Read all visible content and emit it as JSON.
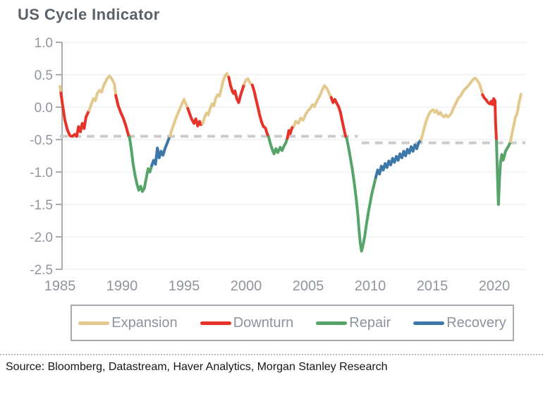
{
  "page": {
    "title": "US Cycle Indicator",
    "source_text": "Source: Bloomberg, Datastream, Haver Analytics, Morgan Stanley Research"
  },
  "colors": {
    "grid": "#E8E8E8",
    "axis": "#ABABAB",
    "tick_text": "#8F959D",
    "dashed_threshold": "#CBCBCB",
    "title_text": "#5B6169",
    "legend_text": "#8C939E",
    "legend_border": "#A6AAAF",
    "source_text": "#14161A"
  },
  "chart_data": {
    "type": "line",
    "title": "US Cycle Indicator",
    "xlabel": "",
    "ylabel": "",
    "xlim": [
      1984.8,
      2022.6
    ],
    "ylim": [
      -2.5,
      1.0
    ],
    "x_ticks": [
      1985,
      1990,
      1995,
      2000,
      2005,
      2010,
      2015,
      2020
    ],
    "y_ticks": [
      1.0,
      0.5,
      0.0,
      -0.5,
      -1.0,
      -1.5,
      -2.0,
      -2.5
    ],
    "grid": true,
    "legend_position": "bottom-box",
    "legend": [
      "Expansion",
      "Downturn",
      "Repair",
      "Recovery"
    ],
    "phases": {
      "Expansion": "#E4C98E",
      "Downturn": "#E73229",
      "Repair": "#57A46A",
      "Recovery": "#3C77A8"
    },
    "threshold_dashed": [
      {
        "y": -0.45,
        "x_start": 1985.0,
        "x_end": 2009.0
      },
      {
        "y": -0.55,
        "x_start": 2009.3,
        "x_end": 2022.5
      }
    ],
    "segments": [
      {
        "phase": "Expansion",
        "points": [
          [
            1985.0,
            0.32
          ],
          [
            1985.08,
            0.22
          ]
        ]
      },
      {
        "phase": "Downturn",
        "points": [
          [
            1985.08,
            0.22
          ],
          [
            1985.2,
            0.05
          ],
          [
            1985.4,
            -0.2
          ],
          [
            1985.6,
            -0.35
          ],
          [
            1985.8,
            -0.44
          ],
          [
            1986.0,
            -0.45
          ],
          [
            1986.2,
            -0.42
          ],
          [
            1986.35,
            -0.45
          ],
          [
            1986.5,
            -0.3
          ],
          [
            1986.65,
            -0.38
          ],
          [
            1986.8,
            -0.25
          ],
          [
            1986.95,
            -0.33
          ],
          [
            1987.1,
            -0.15
          ],
          [
            1987.25,
            -0.09
          ],
          [
            1987.35,
            -0.05
          ]
        ]
      },
      {
        "phase": "Expansion",
        "points": [
          [
            1987.35,
            -0.05
          ],
          [
            1987.5,
            0.03
          ],
          [
            1987.7,
            0.13
          ],
          [
            1987.85,
            0.1
          ],
          [
            1988.0,
            0.21
          ],
          [
            1988.2,
            0.26
          ],
          [
            1988.35,
            0.23
          ],
          [
            1988.5,
            0.32
          ],
          [
            1988.65,
            0.38
          ],
          [
            1988.8,
            0.44
          ],
          [
            1989.0,
            0.48
          ],
          [
            1989.2,
            0.43
          ],
          [
            1989.4,
            0.35
          ],
          [
            1989.5,
            0.18
          ]
        ]
      },
      {
        "phase": "Downturn",
        "points": [
          [
            1989.5,
            0.18
          ],
          [
            1989.7,
            0.02
          ],
          [
            1989.9,
            -0.08
          ],
          [
            1990.1,
            -0.17
          ],
          [
            1990.3,
            -0.28
          ],
          [
            1990.5,
            -0.42
          ],
          [
            1990.6,
            -0.46
          ]
        ]
      },
      {
        "phase": "Repair",
        "points": [
          [
            1990.6,
            -0.46
          ],
          [
            1990.75,
            -0.65
          ],
          [
            1990.9,
            -0.88
          ],
          [
            1991.05,
            -1.05
          ],
          [
            1991.2,
            -1.18
          ],
          [
            1991.35,
            -1.28
          ],
          [
            1991.5,
            -1.22
          ],
          [
            1991.65,
            -1.3
          ],
          [
            1991.8,
            -1.25
          ],
          [
            1991.95,
            -1.1
          ],
          [
            1992.1,
            -0.95
          ],
          [
            1992.25,
            -1.0
          ],
          [
            1992.4,
            -0.9
          ]
        ]
      },
      {
        "phase": "Recovery",
        "points": [
          [
            1992.4,
            -0.9
          ],
          [
            1992.55,
            -0.82
          ],
          [
            1992.7,
            -0.88
          ],
          [
            1992.85,
            -0.63
          ],
          [
            1993.0,
            -0.78
          ],
          [
            1993.15,
            -0.68
          ],
          [
            1993.3,
            -0.74
          ],
          [
            1993.5,
            -0.62
          ],
          [
            1993.65,
            -0.55
          ],
          [
            1993.85,
            -0.45
          ]
        ]
      },
      {
        "phase": "Expansion",
        "points": [
          [
            1993.85,
            -0.45
          ],
          [
            1994.05,
            -0.33
          ],
          [
            1994.25,
            -0.22
          ],
          [
            1994.45,
            -0.12
          ],
          [
            1994.65,
            -0.03
          ],
          [
            1994.85,
            0.06
          ],
          [
            1995.0,
            0.12
          ],
          [
            1995.15,
            0.05
          ],
          [
            1995.3,
            -0.02
          ]
        ]
      },
      {
        "phase": "Downturn",
        "points": [
          [
            1995.3,
            -0.02
          ],
          [
            1995.45,
            -0.1
          ],
          [
            1995.6,
            -0.18
          ],
          [
            1995.8,
            -0.25
          ],
          [
            1995.95,
            -0.18
          ],
          [
            1996.1,
            -0.29
          ],
          [
            1996.25,
            -0.22
          ],
          [
            1996.35,
            -0.27
          ],
          [
            1996.5,
            -0.25
          ]
        ]
      },
      {
        "phase": "Expansion",
        "points": [
          [
            1996.5,
            -0.25
          ],
          [
            1996.65,
            -0.16
          ],
          [
            1996.8,
            -0.09
          ],
          [
            1996.95,
            -0.12
          ],
          [
            1997.1,
            -0.02
          ],
          [
            1997.25,
            0.05
          ],
          [
            1997.4,
            0.02
          ],
          [
            1997.55,
            0.14
          ],
          [
            1997.7,
            0.19
          ],
          [
            1997.85,
            0.17
          ],
          [
            1998.0,
            0.28
          ],
          [
            1998.15,
            0.4
          ],
          [
            1998.3,
            0.48
          ],
          [
            1998.45,
            0.52
          ],
          [
            1998.6,
            0.46
          ]
        ]
      },
      {
        "phase": "Downturn",
        "points": [
          [
            1998.6,
            0.46
          ],
          [
            1998.75,
            0.33
          ],
          [
            1998.9,
            0.24
          ],
          [
            1999.0,
            0.21
          ],
          [
            1999.1,
            0.25
          ],
          [
            1999.25,
            0.13
          ],
          [
            1999.4,
            0.07
          ],
          [
            1999.55,
            0.18
          ],
          [
            1999.7,
            0.27
          ],
          [
            1999.85,
            0.36
          ]
        ]
      },
      {
        "phase": "Expansion",
        "points": [
          [
            1999.85,
            0.36
          ],
          [
            2000.0,
            0.42
          ],
          [
            2000.15,
            0.44
          ],
          [
            2000.3,
            0.38
          ],
          [
            2000.5,
            0.34
          ]
        ]
      },
      {
        "phase": "Downturn",
        "points": [
          [
            2000.5,
            0.34
          ],
          [
            2000.65,
            0.25
          ],
          [
            2000.8,
            0.12
          ],
          [
            2000.95,
            0.0
          ],
          [
            2001.1,
            -0.13
          ],
          [
            2001.25,
            -0.23
          ],
          [
            2001.4,
            -0.3
          ],
          [
            2001.55,
            -0.32
          ],
          [
            2001.7,
            -0.41
          ],
          [
            2001.82,
            -0.46
          ]
        ]
      },
      {
        "phase": "Repair",
        "points": [
          [
            2001.82,
            -0.46
          ],
          [
            2001.95,
            -0.56
          ],
          [
            2002.1,
            -0.65
          ],
          [
            2002.25,
            -0.72
          ],
          [
            2002.4,
            -0.64
          ],
          [
            2002.55,
            -0.7
          ],
          [
            2002.75,
            -0.62
          ],
          [
            2002.9,
            -0.67
          ],
          [
            2003.05,
            -0.6
          ],
          [
            2003.2,
            -0.55
          ],
          [
            2003.32,
            -0.48
          ]
        ]
      },
      {
        "phase": "Downturn",
        "points": [
          [
            2003.32,
            -0.48
          ],
          [
            2003.45,
            -0.36
          ],
          [
            2003.55,
            -0.41
          ],
          [
            2003.7,
            -0.32
          ],
          [
            2003.85,
            -0.29
          ]
        ]
      },
      {
        "phase": "Expansion",
        "points": [
          [
            2003.85,
            -0.29
          ],
          [
            2004.0,
            -0.22
          ],
          [
            2004.2,
            -0.25
          ],
          [
            2004.4,
            -0.17
          ],
          [
            2004.6,
            -0.2
          ],
          [
            2004.8,
            -0.11
          ],
          [
            2005.0,
            -0.05
          ],
          [
            2005.2,
            -0.01
          ],
          [
            2005.35,
            0.04
          ],
          [
            2005.5,
            0.01
          ],
          [
            2005.7,
            0.09
          ],
          [
            2005.9,
            0.16
          ],
          [
            2006.1,
            0.25
          ],
          [
            2006.3,
            0.33
          ],
          [
            2006.5,
            0.29
          ],
          [
            2006.7,
            0.21
          ],
          [
            2006.85,
            0.15
          ]
        ]
      },
      {
        "phase": "Downturn",
        "points": [
          [
            2006.85,
            0.15
          ],
          [
            2007.0,
            0.07
          ],
          [
            2007.15,
            0.12
          ],
          [
            2007.3,
            0.06
          ],
          [
            2007.45,
            0.01
          ],
          [
            2007.6,
            -0.08
          ],
          [
            2007.75,
            -0.22
          ],
          [
            2007.9,
            -0.35
          ],
          [
            2008.0,
            -0.44
          ],
          [
            2008.1,
            -0.48
          ]
        ]
      },
      {
        "phase": "Repair",
        "points": [
          [
            2008.1,
            -0.48
          ],
          [
            2008.25,
            -0.62
          ],
          [
            2008.4,
            -0.78
          ],
          [
            2008.55,
            -0.95
          ],
          [
            2008.7,
            -1.15
          ],
          [
            2008.85,
            -1.38
          ],
          [
            2009.0,
            -1.65
          ],
          [
            2009.1,
            -1.9
          ],
          [
            2009.2,
            -2.1
          ],
          [
            2009.3,
            -2.22
          ],
          [
            2009.4,
            -2.15
          ],
          [
            2009.55,
            -2.0
          ],
          [
            2009.7,
            -1.8
          ],
          [
            2009.85,
            -1.62
          ],
          [
            2010.0,
            -1.47
          ],
          [
            2010.15,
            -1.32
          ],
          [
            2010.3,
            -1.2
          ],
          [
            2010.45,
            -1.08
          ]
        ]
      },
      {
        "phase": "Recovery",
        "points": [
          [
            2010.45,
            -1.08
          ],
          [
            2010.6,
            -0.97
          ],
          [
            2010.75,
            -1.03
          ],
          [
            2010.9,
            -0.91
          ],
          [
            2011.05,
            -0.97
          ],
          [
            2011.2,
            -0.87
          ],
          [
            2011.35,
            -0.93
          ],
          [
            2011.5,
            -0.83
          ],
          [
            2011.65,
            -0.89
          ],
          [
            2011.8,
            -0.79
          ],
          [
            2011.95,
            -0.85
          ],
          [
            2012.1,
            -0.76
          ],
          [
            2012.25,
            -0.82
          ],
          [
            2012.4,
            -0.72
          ],
          [
            2012.55,
            -0.78
          ],
          [
            2012.7,
            -0.68
          ],
          [
            2012.85,
            -0.75
          ],
          [
            2013.0,
            -0.65
          ],
          [
            2013.15,
            -0.71
          ],
          [
            2013.3,
            -0.61
          ],
          [
            2013.45,
            -0.68
          ],
          [
            2013.6,
            -0.58
          ],
          [
            2013.75,
            -0.64
          ],
          [
            2013.9,
            -0.55
          ],
          [
            2014.1,
            -0.5
          ]
        ]
      },
      {
        "phase": "Expansion",
        "points": [
          [
            2014.1,
            -0.5
          ],
          [
            2014.3,
            -0.36
          ],
          [
            2014.5,
            -0.22
          ],
          [
            2014.7,
            -0.12
          ],
          [
            2014.9,
            -0.06
          ],
          [
            2015.05,
            -0.04
          ],
          [
            2015.2,
            -0.08
          ],
          [
            2015.35,
            -0.05
          ],
          [
            2015.5,
            -0.11
          ],
          [
            2015.65,
            -0.08
          ],
          [
            2015.8,
            -0.13
          ],
          [
            2015.95,
            -0.15
          ],
          [
            2016.1,
            -0.12
          ],
          [
            2016.25,
            -0.15
          ],
          [
            2016.4,
            -0.13
          ],
          [
            2016.55,
            -0.09
          ],
          [
            2016.7,
            -0.02
          ],
          [
            2016.9,
            0.06
          ],
          [
            2017.1,
            0.14
          ],
          [
            2017.3,
            0.18
          ],
          [
            2017.5,
            0.25
          ],
          [
            2017.7,
            0.29
          ],
          [
            2017.9,
            0.33
          ],
          [
            2018.1,
            0.38
          ],
          [
            2018.3,
            0.43
          ],
          [
            2018.45,
            0.45
          ],
          [
            2018.6,
            0.42
          ],
          [
            2018.8,
            0.36
          ],
          [
            2018.95,
            0.27
          ],
          [
            2019.05,
            0.19
          ]
        ]
      },
      {
        "phase": "Downturn",
        "points": [
          [
            2019.05,
            0.19
          ],
          [
            2019.2,
            0.14
          ],
          [
            2019.35,
            0.11
          ],
          [
            2019.5,
            0.07
          ],
          [
            2019.65,
            0.05
          ],
          [
            2019.75,
            0.09
          ],
          [
            2019.85,
            0.04
          ],
          [
            2019.95,
            0.13
          ],
          [
            2020.05,
            0.1
          ],
          [
            2020.1,
            -0.25
          ],
          [
            2020.17,
            -0.52
          ]
        ]
      },
      {
        "phase": "Repair",
        "points": [
          [
            2020.17,
            -0.52
          ],
          [
            2020.25,
            -1.05
          ],
          [
            2020.33,
            -1.5
          ],
          [
            2020.42,
            -1.1
          ],
          [
            2020.5,
            -0.85
          ],
          [
            2020.6,
            -0.73
          ],
          [
            2020.7,
            -0.82
          ],
          [
            2020.8,
            -0.76
          ],
          [
            2020.9,
            -0.68
          ],
          [
            2021.05,
            -0.63
          ],
          [
            2021.2,
            -0.58
          ],
          [
            2021.3,
            -0.53
          ]
        ]
      },
      {
        "phase": "Expansion",
        "points": [
          [
            2021.3,
            -0.53
          ],
          [
            2021.45,
            -0.38
          ],
          [
            2021.6,
            -0.25
          ],
          [
            2021.7,
            -0.15
          ],
          [
            2021.8,
            -0.12
          ],
          [
            2021.9,
            -0.04
          ],
          [
            2022.0,
            0.08
          ],
          [
            2022.15,
            0.2
          ]
        ]
      }
    ]
  }
}
